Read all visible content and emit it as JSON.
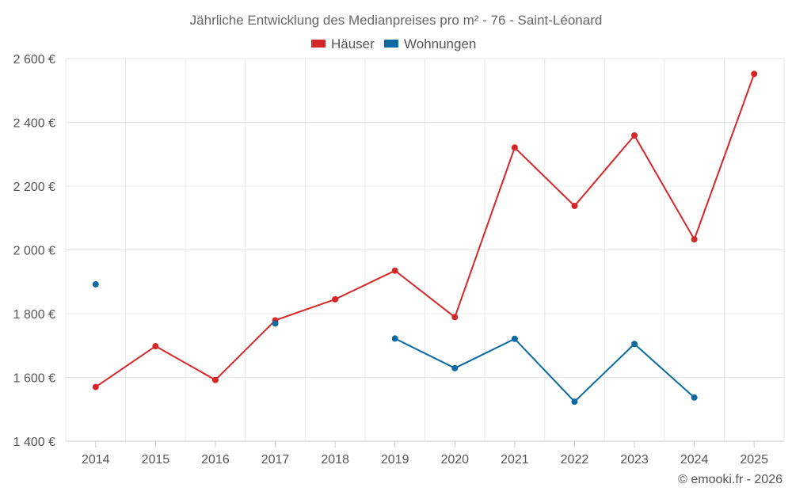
{
  "chart_data": {
    "type": "line",
    "title": "Jährliche Entwicklung des Medianpreises pro m² - 76 - Saint-Léonard",
    "x": [
      "2014",
      "2015",
      "2016",
      "2017",
      "2018",
      "2019",
      "2020",
      "2021",
      "2022",
      "2023",
      "2024",
      "2025"
    ],
    "ylim": [
      1400,
      2600
    ],
    "yticks": [
      1400,
      1600,
      1800,
      2000,
      2200,
      2400,
      2600
    ],
    "ytick_labels": [
      "1 400 €",
      "1 600 €",
      "1 800 €",
      "2 000 €",
      "2 200 €",
      "2 400 €",
      "2 600 €"
    ],
    "grid": true,
    "legend_position": "top-center",
    "series": [
      {
        "name": "Häuser",
        "color": "#d62728",
        "values": [
          1570,
          1698,
          1592,
          1779,
          1845,
          1935,
          1789,
          2321,
          2138,
          2359,
          2033,
          2552
        ]
      },
      {
        "name": "Wohnungen",
        "color": "#0b6aa2",
        "values": [
          1892,
          null,
          null,
          1769,
          null,
          1722,
          1629,
          1721,
          1524,
          1705,
          1537,
          null
        ]
      }
    ]
  },
  "credit": "© emooki.fr - 2026"
}
